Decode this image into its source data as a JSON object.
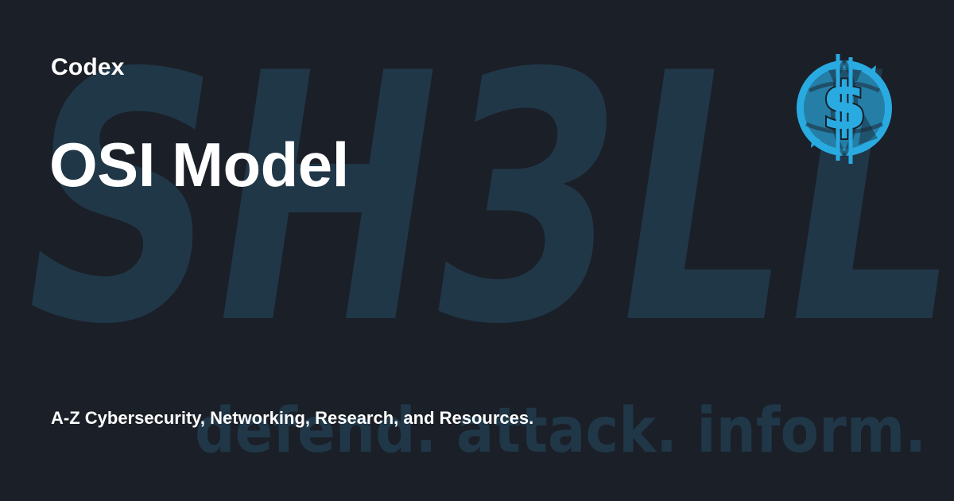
{
  "brand": {
    "name": "Codex"
  },
  "page": {
    "title": "OSI Model",
    "subtitle": "A-Z Cybersecurity, Networking, Research, and Resources."
  },
  "background": {
    "wordmark": "SH3LL",
    "tagline": "defend. attack. inform."
  },
  "icons": {
    "logo": "dollar-shield-globe-icon"
  },
  "colors": {
    "background": "#1b1f27",
    "wordmark": "#203748",
    "icon": "#29abe2",
    "text": "#ffffff"
  }
}
